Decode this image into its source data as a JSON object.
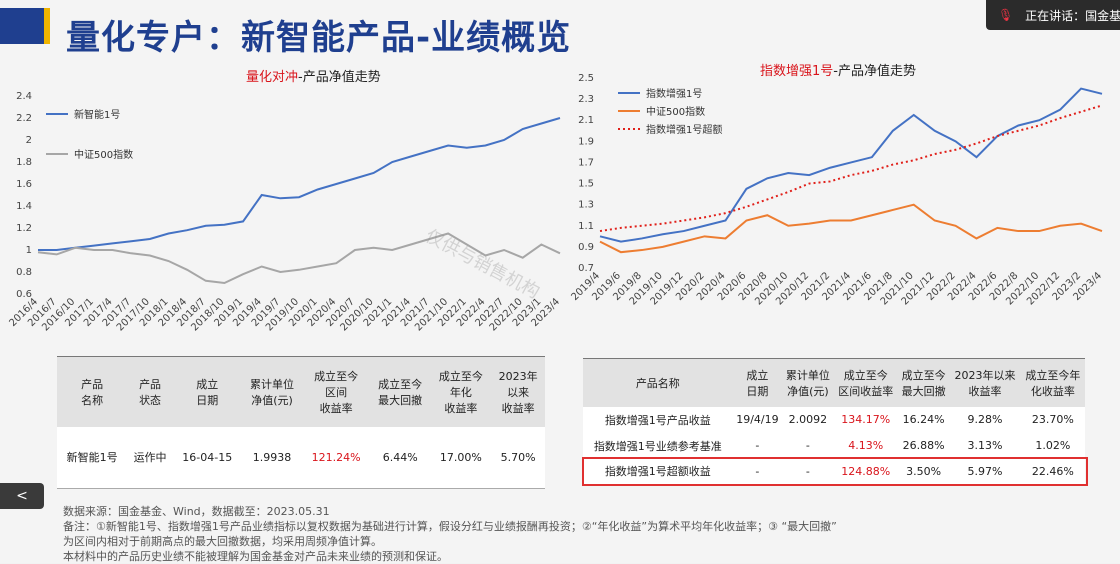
{
  "title": "量化专户：新智能产品-业绩概览",
  "speaker_label": "正在讲话：国金基",
  "watermark": "仅供与销售机构",
  "nav_prev": "<",
  "colors": {
    "blue": "#4472c4",
    "gray": "#a6a6a6",
    "orange": "#ed7d31",
    "red": "#e0201a",
    "brand": "#1f3f8f"
  },
  "chart_data": [
    {
      "type": "line",
      "title_red": "量化对冲",
      "title_rest": "-产品净值走势",
      "ylim": [
        0.6,
        2.4
      ],
      "yticks": [
        "2.4",
        "2.2",
        "2",
        "1.8",
        "1.6",
        "1.4",
        "1.2",
        "1",
        "0.8",
        "0.6"
      ],
      "xticks": [
        "2016/4",
        "2016/7",
        "2016/10",
        "2017/1",
        "2017/4",
        "2017/7",
        "2017/10",
        "2018/1",
        "2018/4",
        "2018/7",
        "2018/10",
        "2019/1",
        "2019/4",
        "2019/7",
        "2019/10",
        "2020/1",
        "2020/4",
        "2020/7",
        "2020/10",
        "2021/1",
        "2021/4",
        "2021/7",
        "2021/10",
        "2022/1",
        "2022/4",
        "2022/7",
        "2022/10",
        "2023/1",
        "2023/4"
      ],
      "series": [
        {
          "name": "新智能1号",
          "color": "#4472c4",
          "values": [
            1.0,
            1.0,
            1.02,
            1.04,
            1.06,
            1.08,
            1.1,
            1.15,
            1.18,
            1.22,
            1.23,
            1.26,
            1.5,
            1.47,
            1.48,
            1.55,
            1.6,
            1.65,
            1.7,
            1.8,
            1.85,
            1.9,
            1.95,
            1.93,
            1.95,
            2.0,
            2.1,
            2.15,
            2.2
          ]
        },
        {
          "name": "中证500指数",
          "color": "#a6a6a6",
          "values": [
            0.98,
            0.96,
            1.02,
            1.0,
            1.0,
            0.97,
            0.95,
            0.9,
            0.82,
            0.72,
            0.7,
            0.78,
            0.85,
            0.8,
            0.82,
            0.85,
            0.88,
            1.0,
            1.02,
            1.0,
            1.05,
            1.1,
            1.15,
            1.05,
            0.95,
            1.0,
            0.93,
            1.05,
            0.97
          ]
        }
      ]
    },
    {
      "type": "line",
      "title_red": "指数增强1号",
      "title_rest": "-产品净值走势",
      "ylim": [
        0.7,
        2.5
      ],
      "yticks": [
        "2.5",
        "2.3",
        "2.1",
        "1.9",
        "1.7",
        "1.5",
        "1.3",
        "1.1",
        "0.9",
        "0.7"
      ],
      "xticks": [
        "2019/4",
        "2019/6",
        "2019/8",
        "2019/10",
        "2019/12",
        "2020/2",
        "2020/4",
        "2020/6",
        "2020/8",
        "2020/10",
        "2020/12",
        "2021/2",
        "2021/4",
        "2021/6",
        "2021/8",
        "2021/10",
        "2021/12",
        "2022/2",
        "2022/4",
        "2022/6",
        "2022/8",
        "2022/10",
        "2022/12",
        "2023/2",
        "2023/4"
      ],
      "series": [
        {
          "name": "指数增强1号",
          "color": "#4472c4",
          "dash": false,
          "values": [
            1.0,
            0.95,
            0.98,
            1.02,
            1.05,
            1.1,
            1.15,
            1.45,
            1.55,
            1.6,
            1.58,
            1.65,
            1.7,
            1.75,
            2.0,
            2.15,
            2.0,
            1.9,
            1.75,
            1.95,
            2.05,
            2.1,
            2.2,
            2.4,
            2.35
          ]
        },
        {
          "name": "中证500指数",
          "color": "#ed7d31",
          "dash": false,
          "values": [
            0.95,
            0.85,
            0.87,
            0.9,
            0.95,
            1.0,
            0.98,
            1.15,
            1.2,
            1.1,
            1.12,
            1.15,
            1.15,
            1.2,
            1.25,
            1.3,
            1.15,
            1.1,
            0.98,
            1.08,
            1.05,
            1.05,
            1.1,
            1.12,
            1.05
          ]
        },
        {
          "name": "指数增强1号超额",
          "color": "#e0201a",
          "dash": true,
          "values": [
            1.05,
            1.08,
            1.1,
            1.12,
            1.15,
            1.18,
            1.22,
            1.28,
            1.35,
            1.42,
            1.5,
            1.52,
            1.58,
            1.62,
            1.68,
            1.72,
            1.78,
            1.82,
            1.88,
            1.95,
            2.0,
            2.05,
            2.12,
            2.18,
            2.24
          ]
        }
      ]
    }
  ],
  "table1": {
    "headers": [
      "产品\n名称",
      "产品\n状态",
      "成立\n日期",
      "累计单位\n净值(元)",
      "成立至今\n区间\n收益率",
      "成立至今\n最大回撤",
      "成立至今\n年化\n收益率",
      "2023年\n以来\n收益率"
    ],
    "row": [
      "新智能1号",
      "运作中",
      "16-04-15",
      "1.9938",
      "121.24%",
      "6.44%",
      "17.00%",
      "5.70%"
    ]
  },
  "table2": {
    "headers": [
      "产品名称",
      "成立\n日期",
      "累计单位\n净值(元)",
      "成立至今\n区间收益率",
      "成立至今\n最大回撤",
      "2023年以来\n收益率",
      "成立至今年\n化收益率"
    ],
    "rows": [
      [
        "指数增强1号产品收益",
        "19/4/19",
        "2.0092",
        "134.17%",
        "16.24%",
        "9.28%",
        "23.70%"
      ],
      [
        "指数增强1号业绩参考基准",
        "-",
        "-",
        "4.13%",
        "26.88%",
        "3.13%",
        "1.02%"
      ],
      [
        "指数增强1号超额收益",
        "-",
        "-",
        "124.88%",
        "3.50%",
        "5.97%",
        "22.46%"
      ]
    ]
  },
  "notes": [
    "数据来源：国金基金、Wind，数据截至：2023.05.31",
    "备注：①新智能1号、指数增强1号产品业绩指标以复权数据为基础进行计算，假设分红与业绩报酬再投资；②“年化收益”为算术平均年化收益率；③ “最大回撤”",
    "为区间内相对于前期高点的最大回撤数据，均采用周频净值计算。",
    "本材料中的产品历史业绩不能被理解为国金基金对产品未来业绩的预测和保证。"
  ]
}
